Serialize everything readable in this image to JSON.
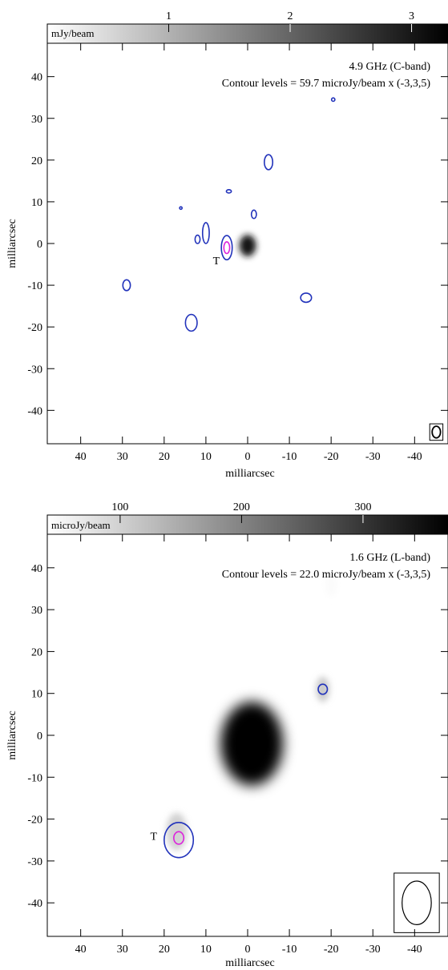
{
  "chart_data": [
    {
      "type": "heatmap",
      "title": "",
      "annotations": [
        "4.9 GHz (C-band)",
        "Contour levels = 59.7 microJy/beam x (-3,3,5)"
      ],
      "xlabel": "milliarcsec",
      "ylabel": "milliarcsec",
      "xlim": [
        48,
        -48
      ],
      "ylim": [
        -48,
        48
      ],
      "x_reversed": true,
      "xticks": [
        40,
        30,
        20,
        10,
        0,
        -10,
        -20,
        -30,
        -40
      ],
      "xtick_labels": [
        "40",
        "30",
        "20",
        "10",
        "0",
        "-10",
        "-20",
        "-30",
        "-40"
      ],
      "yticks": [
        40,
        30,
        20,
        10,
        0,
        -10,
        -20,
        -30,
        -40
      ],
      "ytick_labels": [
        "40",
        "30",
        "20",
        "10",
        "0",
        "-10",
        "-20",
        "-30",
        "-40"
      ],
      "colorbar": {
        "label": "mJy/beam",
        "range": [
          0,
          3.3
        ],
        "ticks": [
          1,
          2,
          3
        ],
        "tick_labels": [
          "1",
          "2",
          "3"
        ]
      },
      "source_marker": {
        "label": "T",
        "x": 7.5,
        "y": -4
      },
      "emission": [
        {
          "x": 0,
          "y": -0.5,
          "sx": 2.0,
          "sy": 2.6,
          "peak_mJy": 3.0
        }
      ],
      "contours": [
        {
          "level": "3 sigma",
          "color": "#2233bb",
          "x": 5,
          "y": -1,
          "rx": 1.3,
          "ry": 2.9
        },
        {
          "level": "5 sigma",
          "color": "#dd22dd",
          "x": 5,
          "y": -1,
          "rx": 0.7,
          "ry": 1.4
        },
        {
          "level": "3 sigma",
          "color": "#2233bb",
          "x": 10,
          "y": 2.5,
          "rx": 0.8,
          "ry": 2.5
        },
        {
          "level": "3 sigma",
          "color": "#2233bb",
          "x": 12,
          "y": 1,
          "rx": 0.6,
          "ry": 1.0
        },
        {
          "level": "3 sigma",
          "color": "#2233bb",
          "x": 29,
          "y": -10,
          "rx": 0.9,
          "ry": 1.3
        },
        {
          "level": "3 sigma",
          "color": "#2233bb",
          "x": 13.5,
          "y": -19,
          "rx": 1.4,
          "ry": 2.0
        },
        {
          "level": "3 sigma",
          "color": "#2233bb",
          "x": -5,
          "y": 19.5,
          "rx": 1.0,
          "ry": 1.8
        },
        {
          "level": "3 sigma",
          "color": "#2233bb",
          "x": 4.5,
          "y": 12.5,
          "rx": 0.6,
          "ry": 0.4
        },
        {
          "level": "3 sigma",
          "color": "#2233bb",
          "x": -1.5,
          "y": 7,
          "rx": 0.6,
          "ry": 1.0
        },
        {
          "level": "3 sigma",
          "color": "#2233bb",
          "x": 16,
          "y": 8.5,
          "rx": 0.3,
          "ry": 0.3
        },
        {
          "level": "3 sigma",
          "color": "#2233bb",
          "x": -20.5,
          "y": 34.5,
          "rx": 0.4,
          "ry": 0.4
        },
        {
          "level": "3 sigma",
          "color": "#2233bb",
          "x": -14,
          "y": -13,
          "rx": 1.3,
          "ry": 1.1
        }
      ],
      "beam": {
        "x": -45.2,
        "y": -45.2,
        "rx": 1.0,
        "ry": 1.4
      }
    },
    {
      "type": "heatmap",
      "title": "",
      "annotations": [
        "1.6 GHz (L-band)",
        "Contour levels = 22.0 microJy/beam x (-3,3,5)"
      ],
      "xlabel": "milliarcsec",
      "ylabel": "milliarcsec",
      "xlim": [
        48,
        -48
      ],
      "ylim": [
        -48,
        48
      ],
      "x_reversed": true,
      "xticks": [
        40,
        30,
        20,
        10,
        0,
        -10,
        -20,
        -30,
        -40
      ],
      "xtick_labels": [
        "40",
        "30",
        "20",
        "10",
        "0",
        "-10",
        "-20",
        "-30",
        "-40"
      ],
      "yticks": [
        40,
        30,
        20,
        10,
        0,
        -10,
        -20,
        -30,
        -40
      ],
      "ytick_labels": [
        "40",
        "30",
        "20",
        "10",
        "0",
        "-10",
        "-20",
        "-30",
        "-40"
      ],
      "colorbar": {
        "label": "microJy/beam",
        "range": [
          40,
          370
        ],
        "ticks": [
          100,
          200,
          300
        ],
        "tick_labels": [
          "100",
          "200",
          "300"
        ]
      },
      "source_marker": {
        "label": "T",
        "x": 22.5,
        "y": -24
      },
      "emission": [
        {
          "x": -1,
          "y": -2,
          "sx": 7.5,
          "sy": 10,
          "peak_microJy": 370
        },
        {
          "x": -18,
          "y": 11,
          "sx": 1.6,
          "sy": 3.0,
          "peak_microJy": 110
        },
        {
          "x": 17,
          "y": -23,
          "sx": 2.5,
          "sy": 4.5,
          "peak_microJy": 100
        },
        {
          "x": -20,
          "y": 36,
          "sx": 1.5,
          "sy": 3.0,
          "peak_microJy": 45
        }
      ],
      "contours": [
        {
          "level": "3 sigma",
          "color": "#2233bb",
          "x": -18,
          "y": 11,
          "rx": 1.1,
          "ry": 1.2
        },
        {
          "level": "3 sigma",
          "color": "#2233bb",
          "x": 16.5,
          "y": -25,
          "rx": 3.5,
          "ry": 4.2
        },
        {
          "level": "5 sigma",
          "color": "#dd22dd",
          "x": 16.5,
          "y": -24.5,
          "rx": 1.2,
          "ry": 1.5
        }
      ],
      "beam": {
        "x": -40.5,
        "y": -40,
        "rx": 3.5,
        "ry": 5.2
      }
    }
  ]
}
